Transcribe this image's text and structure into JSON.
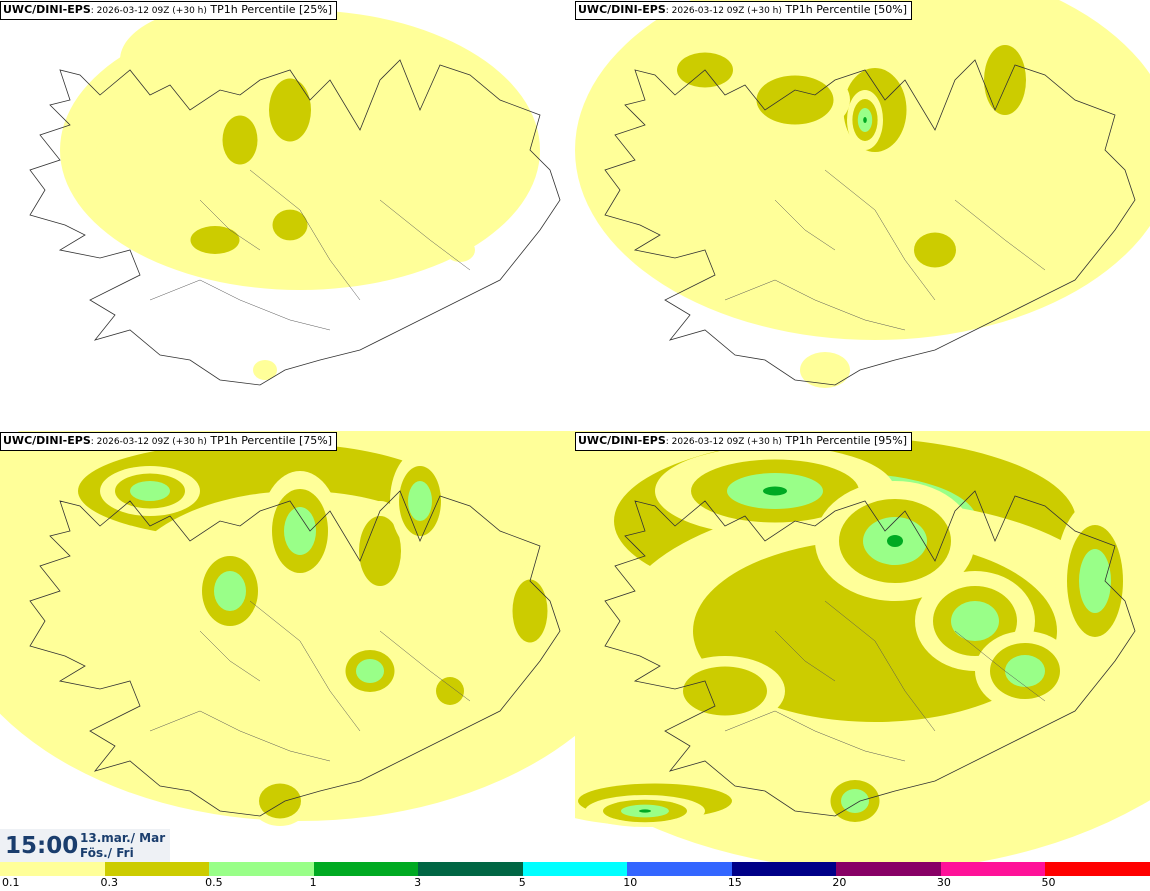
{
  "panels": [
    {
      "model": "UWC/DINI-EPS",
      "run": ": 2026-03-12 09Z (+30 h)",
      "field": " TP1h Percentile [25%]",
      "level": 0
    },
    {
      "model": "UWC/DINI-EPS",
      "run": ": 2026-03-12 09Z (+30 h)",
      "field": " TP1h Percentile [50%]",
      "level": 1
    },
    {
      "model": "UWC/DINI-EPS",
      "run": ": 2026-03-12 09Z (+30 h)",
      "field": " TP1h Percentile [75%]",
      "level": 2
    },
    {
      "model": "UWC/DINI-EPS",
      "run": ": 2026-03-12 09Z (+30 h)",
      "field": " TP1h Percentile [95%]",
      "level": 3
    }
  ],
  "valid_time": {
    "time": "15:00",
    "date_line1": "13.mar./ Mar",
    "date_line2": "Fös./ Fri"
  },
  "colorbar": {
    "colors": [
      "#ffff99",
      "#cccc00",
      "#99ff88",
      "#00aa22",
      "#006644",
      "#00ffff",
      "#3366ff",
      "#000088",
      "#880066",
      "#ff1199",
      "#ff0000"
    ],
    "labels": [
      "0.1",
      "0.3",
      "0.5",
      "1",
      "3",
      "5",
      "10",
      "15",
      "20",
      "30",
      "50"
    ]
  }
}
